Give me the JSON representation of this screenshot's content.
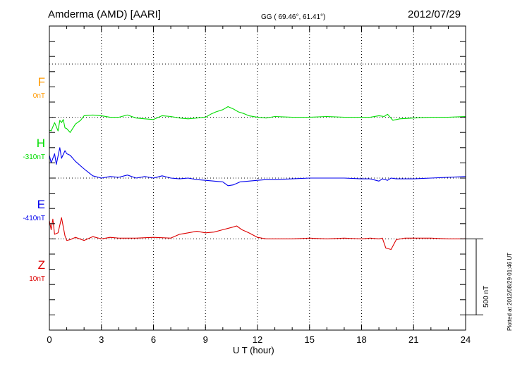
{
  "header": {
    "station": "Amderma (AMD)  [AARI]",
    "coords": "GG ( 69.46°,  61.41°)",
    "date": "2012/07/29"
  },
  "footer": {
    "plotted": "Plotted at 2012/08/29 01:46 UT",
    "scale": "500 nT"
  },
  "chart_data": {
    "type": "line",
    "title": "Amderma (AMD)  [AARI]",
    "xlabel": "U T (hour)",
    "ylabel": "",
    "xlim": [
      0,
      24
    ],
    "ylim_nT": [
      -1750,
      250
    ],
    "xticks": [
      0,
      3,
      6,
      9,
      12,
      15,
      18,
      21,
      24
    ],
    "grid": true,
    "scale_bar_nT": 500,
    "series": [
      {
        "name": "F",
        "offset_label": "0nT",
        "baseline_nT": 0,
        "color": "#ff9900",
        "x": [],
        "values": []
      },
      {
        "name": "H",
        "offset_label": "-310nT",
        "baseline_nT": -350,
        "color": "#00dd00",
        "x": [
          0,
          0.1,
          0.3,
          0.5,
          0.6,
          0.7,
          0.8,
          0.9,
          1.0,
          1.2,
          1.5,
          1.8,
          2.0,
          2.5,
          3.0,
          3.5,
          4.0,
          4.5,
          5.0,
          5.5,
          6.0,
          6.5,
          7.0,
          7.5,
          8.0,
          8.5,
          9.0,
          9.3,
          9.6,
          10.0,
          10.3,
          10.6,
          10.9,
          11.2,
          11.5,
          12.0,
          12.5,
          13.0,
          14.0,
          15.0,
          16.0,
          17.0,
          18.0,
          18.5,
          19.0,
          19.3,
          19.5,
          19.8,
          20.2,
          21.0,
          22.0,
          23.0,
          24.0
        ],
        "values": [
          -85,
          -90,
          -35,
          -90,
          -20,
          -35,
          -15,
          -70,
          -75,
          -100,
          -45,
          -20,
          10,
          15,
          10,
          0,
          0,
          15,
          -5,
          -10,
          -15,
          10,
          5,
          -5,
          -10,
          -5,
          0,
          20,
          35,
          50,
          70,
          55,
          35,
          25,
          10,
          0,
          -5,
          5,
          0,
          0,
          5,
          0,
          0,
          0,
          10,
          5,
          20,
          -20,
          -10,
          -5,
          0,
          0,
          5
        ]
      },
      {
        "name": "E",
        "offset_label": "-410nT",
        "baseline_nT": -750,
        "color": "#0000ee",
        "x": [
          0,
          0.1,
          0.3,
          0.4,
          0.6,
          0.7,
          0.9,
          1.0,
          1.2,
          1.5,
          2.0,
          2.5,
          3.0,
          3.5,
          4.0,
          4.5,
          5.0,
          5.5,
          6.0,
          6.5,
          7.0,
          7.5,
          8.0,
          8.5,
          9.0,
          9.5,
          10.0,
          10.3,
          10.6,
          11.0,
          11.5,
          12.0,
          12.5,
          13.0,
          14.0,
          15.0,
          16.0,
          17.0,
          18.0,
          18.5,
          19.0,
          19.2,
          19.5,
          19.7,
          20.0,
          21.0,
          22.0,
          23.0,
          24.0
        ],
        "values": [
          150,
          100,
          160,
          90,
          200,
          130,
          180,
          160,
          150,
          110,
          60,
          15,
          0,
          10,
          5,
          20,
          0,
          10,
          0,
          15,
          0,
          -5,
          0,
          -10,
          -15,
          -20,
          -25,
          -50,
          -45,
          -25,
          -20,
          -15,
          -10,
          -10,
          -5,
          0,
          0,
          0,
          -5,
          -5,
          -20,
          -5,
          -15,
          0,
          -5,
          -5,
          0,
          5,
          10
        ]
      },
      {
        "name": "Z",
        "offset_label": "10nT",
        "baseline_nT": -1150,
        "color": "#dd0000",
        "x": [
          0,
          0.1,
          0.2,
          0.3,
          0.5,
          0.7,
          0.9,
          1.0,
          1.2,
          1.5,
          2.0,
          2.5,
          3.0,
          3.5,
          4.0,
          5.0,
          6.0,
          7.0,
          7.5,
          8.0,
          8.5,
          9.0,
          9.5,
          10.0,
          10.5,
          10.8,
          11.1,
          11.5,
          12.0,
          12.5,
          13.0,
          14.0,
          15.0,
          16.0,
          17.0,
          18.0,
          18.5,
          19.0,
          19.2,
          19.4,
          19.7,
          20.0,
          20.5,
          21.0,
          22.0,
          23.0,
          24.0
        ],
        "values": [
          120,
          60,
          130,
          30,
          40,
          140,
          20,
          -10,
          -5,
          10,
          -10,
          15,
          0,
          10,
          5,
          5,
          10,
          5,
          30,
          40,
          50,
          40,
          45,
          60,
          75,
          85,
          60,
          40,
          10,
          0,
          0,
          0,
          5,
          0,
          5,
          0,
          5,
          0,
          5,
          -60,
          -70,
          -5,
          5,
          5,
          5,
          0,
          0
        ]
      }
    ]
  }
}
